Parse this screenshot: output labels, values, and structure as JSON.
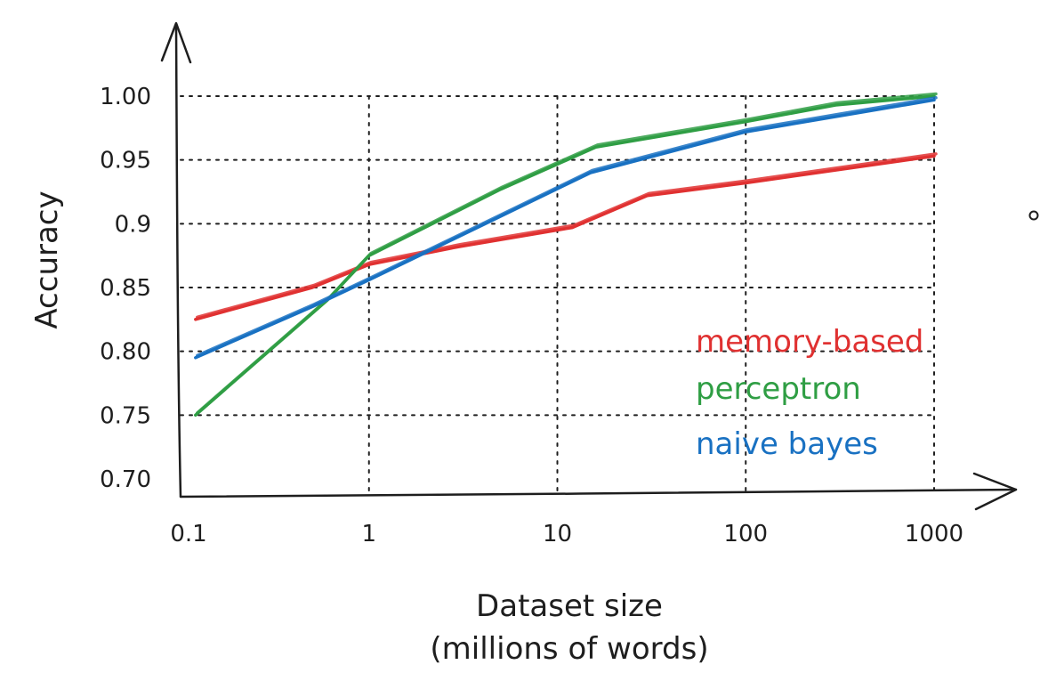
{
  "chart_data": {
    "type": "line",
    "title": "",
    "xlabel": [
      "Dataset size",
      "(millions of words)"
    ],
    "ylabel": "Accuracy",
    "x_scale": "log",
    "xlim": [
      0.1,
      1000
    ],
    "ylim": [
      0.7,
      1.0
    ],
    "x_ticks": [
      0.1,
      1,
      10,
      100,
      1000
    ],
    "x_tick_labels": [
      "0.1",
      "1",
      "10",
      "100",
      "1000"
    ],
    "y_ticks": [
      0.7,
      0.75,
      0.8,
      0.85,
      0.9,
      0.95,
      1.0
    ],
    "y_tick_labels": [
      "0.70",
      "0.75",
      "0.80",
      "0.85",
      "0.9",
      "0.95",
      "1.00"
    ],
    "grid": true,
    "legend_placement": "bottom-right",
    "series": [
      {
        "name": "memory-based",
        "color": "#e03131",
        "x": [
          0.12,
          0.5,
          1,
          3,
          12,
          30,
          100,
          1000
        ],
        "y": [
          0.825,
          0.85,
          0.868,
          0.882,
          0.897,
          0.922,
          0.932,
          0.953
        ]
      },
      {
        "name": "perceptron",
        "color": "#2f9e44",
        "x": [
          0.12,
          0.6,
          1,
          5,
          16,
          100,
          300,
          1000
        ],
        "y": [
          0.75,
          0.84,
          0.875,
          0.927,
          0.96,
          0.98,
          0.993,
          1.0
        ]
      },
      {
        "name": "naive bayes",
        "color": "#1971c2",
        "x": [
          0.12,
          0.5,
          1,
          3,
          15,
          100,
          1000
        ],
        "y": [
          0.795,
          0.835,
          0.856,
          0.89,
          0.94,
          0.972,
          0.997
        ]
      }
    ]
  }
}
